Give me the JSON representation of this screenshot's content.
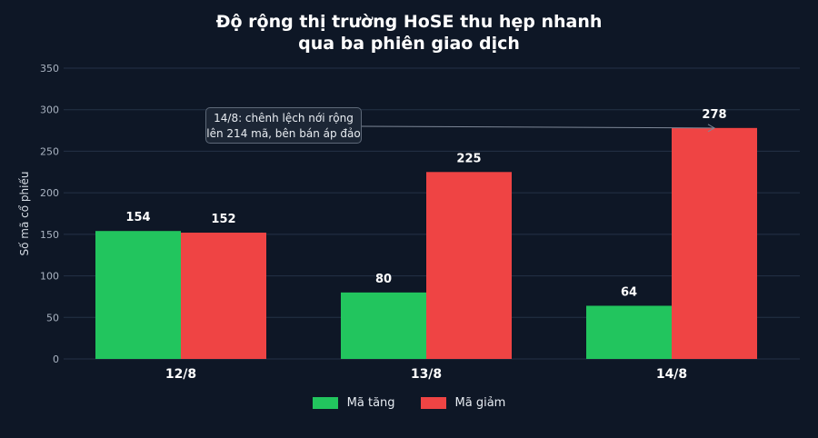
{
  "chart_data": {
    "type": "bar",
    "title_lines": [
      "Độ rộng thị trường HoSE thu hẹp nhanh",
      "qua ba phiên giao dịch"
    ],
    "categories": [
      "12/8",
      "13/8",
      "14/8"
    ],
    "series": [
      {
        "name": "Mã tăng",
        "values": [
          154,
          80,
          64
        ],
        "color": "#22c55e"
      },
      {
        "name": "Mã giảm",
        "values": [
          152,
          225,
          278
        ],
        "color": "#ef4444"
      }
    ],
    "xlabel": "",
    "ylabel": "Số mã cổ phiếu",
    "ylim": [
      0,
      350
    ],
    "yticks": [
      0,
      50,
      100,
      150,
      200,
      250,
      300,
      350
    ],
    "grid": true,
    "legend": "bottom-center",
    "annotation": {
      "lines": [
        "14/8: chênh lệch nới rộng",
        "lên 214 mã, bên bán áp đảo"
      ],
      "target_category": "14/8",
      "target_value": 278
    }
  }
}
